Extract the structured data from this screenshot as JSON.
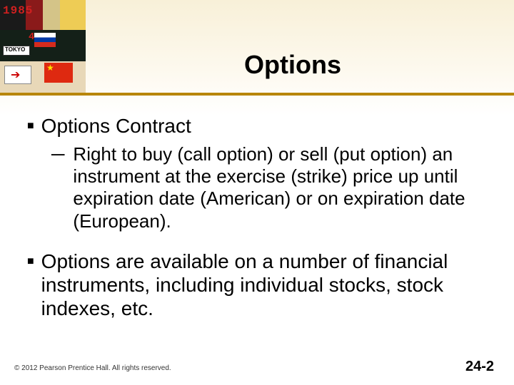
{
  "title": "Options",
  "bullets": {
    "b1": {
      "text": "Options Contract"
    },
    "b1_sub": {
      "text": "Right to buy (call option) or sell (put option) an instrument at the exercise (strike) price up until expiration date (American) or on expiration date (European)."
    },
    "b2": {
      "text": "Options are available on a number of financial instruments, including individual stocks, stock indexes, etc."
    }
  },
  "footer": {
    "copyright": "© 2012 Pearson Prentice Hall. All rights reserved.",
    "page": "24-2"
  },
  "colors": {
    "underline": "#b8860b",
    "background_top": "#f8f0d8",
    "text": "#000000"
  }
}
